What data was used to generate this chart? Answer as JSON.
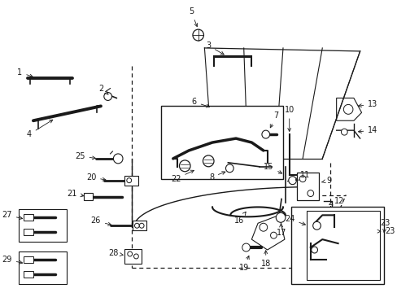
{
  "bg_color": "#ffffff",
  "line_color": "#1a1a1a",
  "fig_width": 4.89,
  "fig_height": 3.6,
  "dpi": 100,
  "font_size": 7.0
}
